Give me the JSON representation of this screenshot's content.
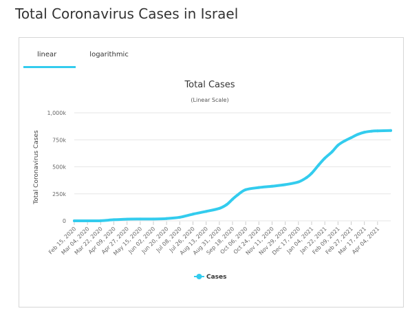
{
  "page_title": "Total Coronavirus Cases in Israel",
  "tabs": [
    {
      "label": "linear",
      "active": true
    },
    {
      "label": "logarithmic",
      "active": false
    }
  ],
  "colors": {
    "series": "#33ccee",
    "grid": "#e6e6e6",
    "active_tab": "#33ccee"
  },
  "chart_data": {
    "type": "line",
    "title": "Total Cases",
    "subtitle": "(Linear Scale)",
    "xlabel": "",
    "ylabel": "Total Coronavirus Cases",
    "ylim": [
      0,
      1000000
    ],
    "yticks": [
      {
        "value": 0,
        "label": "0"
      },
      {
        "value": 250000,
        "label": "250k"
      },
      {
        "value": 500000,
        "label": "500k"
      },
      {
        "value": 750000,
        "label": "750k"
      },
      {
        "value": 1000000,
        "label": "1,000k"
      }
    ],
    "xlim": [
      "2020-02-15",
      "2021-04-22"
    ],
    "xticks": [
      "Feb 15, 2020",
      "Mar 04, 2020",
      "Mar 22, 2020",
      "Apr 09, 2020",
      "Apr 27, 2020",
      "May 15, 2020",
      "Jun 02, 2020",
      "Jun 20, 2020",
      "Jul 08, 2020",
      "Jul 26, 2020",
      "Aug 13, 2020",
      "Aug 31, 2020",
      "Sep 18, 2020",
      "Oct 06, 2020",
      "Oct 24, 2020",
      "Nov 11, 2020",
      "Nov 29, 2020",
      "Dec 17, 2020",
      "Jan 04, 2021",
      "Jan 22, 2021",
      "Feb 09, 2021",
      "Feb 27, 2021",
      "Mar 17, 2021",
      "Apr 04, 2021"
    ],
    "grid": true,
    "legend": "bottom-center",
    "series": [
      {
        "name": "Cases",
        "x": [
          "2020-02-15",
          "2020-03-04",
          "2020-03-22",
          "2020-04-09",
          "2020-04-27",
          "2020-05-15",
          "2020-06-02",
          "2020-06-20",
          "2020-07-08",
          "2020-07-26",
          "2020-08-13",
          "2020-08-31",
          "2020-09-10",
          "2020-09-18",
          "2020-09-25",
          "2020-10-06",
          "2020-10-24",
          "2020-11-11",
          "2020-11-29",
          "2020-12-17",
          "2020-12-28",
          "2021-01-04",
          "2021-01-14",
          "2021-01-22",
          "2021-02-01",
          "2021-02-09",
          "2021-02-18",
          "2021-02-27",
          "2021-03-08",
          "2021-03-17",
          "2021-03-27",
          "2021-04-04",
          "2021-04-22"
        ],
        "values": [
          0,
          100,
          1000,
          10000,
          15500,
          16600,
          17000,
          21000,
          33000,
          62000,
          87000,
          115000,
          150000,
          200000,
          240000,
          288000,
          308000,
          320000,
          335000,
          360000,
          400000,
          440000,
          520000,
          580000,
          640000,
          700000,
          740000,
          770000,
          800000,
          820000,
          830000,
          833000,
          836000
        ]
      }
    ]
  }
}
